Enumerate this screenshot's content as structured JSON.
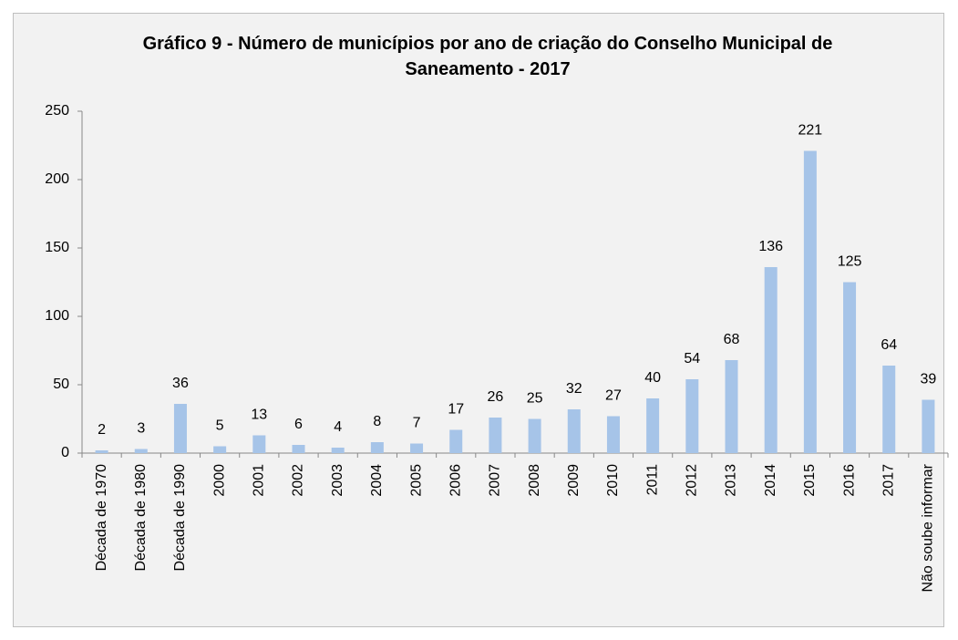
{
  "chart_data": {
    "type": "bar",
    "title": "Gráfico 9 - Número de municípios por ano de criação do Conselho Municipal de Saneamento - 2017",
    "categories": [
      "Década de 1970",
      "Década de 1980",
      "Década de 1990",
      "2000",
      "2001",
      "2002",
      "2003",
      "2004",
      "2005",
      "2006",
      "2007",
      "2008",
      "2009",
      "2010",
      "2011",
      "2012",
      "2013",
      "2014",
      "2015",
      "2016",
      "2017",
      "Não soube informar"
    ],
    "values": [
      2,
      3,
      36,
      5,
      13,
      6,
      4,
      8,
      7,
      17,
      26,
      25,
      32,
      27,
      40,
      54,
      68,
      136,
      221,
      125,
      64,
      39
    ],
    "color": "#a6c4e8",
    "ylim": [
      0,
      250
    ],
    "yticks": [
      0,
      50,
      100,
      150,
      200,
      250
    ],
    "grid": false
  }
}
